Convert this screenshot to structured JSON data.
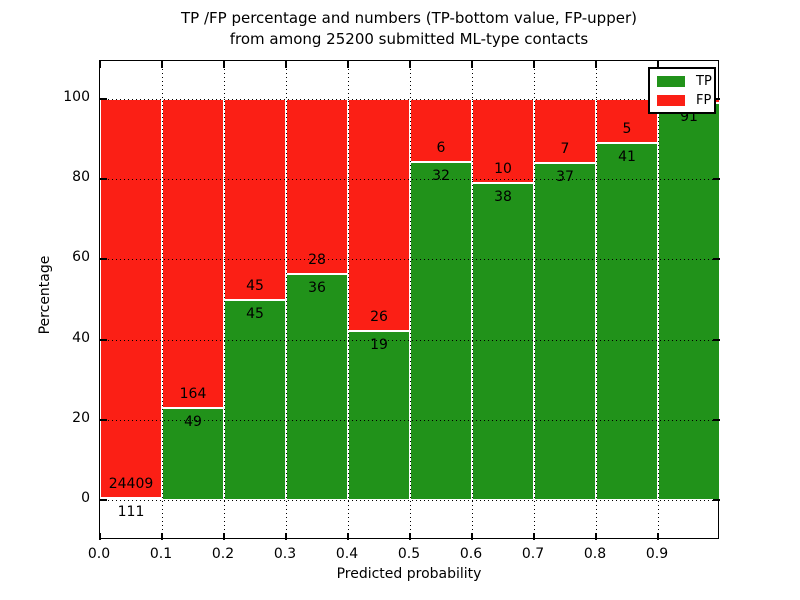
{
  "title": {
    "line1": "TP /FP percentage and numbers (TP-bottom value, FP-upper)",
    "line2": "from among 25200 submitted ML-type contacts"
  },
  "axes": {
    "ylabel": "Percentage",
    "xlabel": "Predicted probability",
    "ytick_labels": [
      "0",
      "20",
      "40",
      "60",
      "80",
      "100"
    ],
    "ytick_values": [
      0,
      20,
      40,
      60,
      80,
      100
    ],
    "xtick_labels": [
      "0.0",
      "0.1",
      "0.2",
      "0.3",
      "0.4",
      "0.5",
      "0.6",
      "0.7",
      "0.8",
      "0.9"
    ],
    "xtick_values": [
      0.0,
      0.1,
      0.2,
      0.3,
      0.4,
      0.5,
      0.6,
      0.7,
      0.8,
      0.9
    ]
  },
  "legend": {
    "items": [
      {
        "label": "TP",
        "color_key": "tp"
      },
      {
        "label": "FP",
        "color_key": "fp"
      }
    ]
  },
  "colors": {
    "tp": "#21921a",
    "fp": "#fb1f15"
  },
  "chart_data": {
    "type": "bar",
    "stacked": true,
    "normalized": "each bin scaled to 100%",
    "title": "TP /FP percentage and numbers (TP-bottom value, FP-upper) from among 25200 submitted ML-type contacts",
    "xlabel": "Predicted probability",
    "ylabel": "Percentage",
    "xlim": [
      0.0,
      1.0
    ],
    "ylim": [
      -10,
      110
    ],
    "grid": true,
    "legend_position": "upper right",
    "total_contacts": 25200,
    "bins": [
      "0.0-0.1",
      "0.1-0.2",
      "0.2-0.3",
      "0.3-0.4",
      "0.4-0.5",
      "0.5-0.6",
      "0.6-0.7",
      "0.7-0.8",
      "0.8-0.9",
      "0.9-1.0"
    ],
    "series": [
      {
        "name": "TP",
        "values": [
          111,
          49,
          45,
          36,
          19,
          32,
          38,
          37,
          41,
          91
        ]
      },
      {
        "name": "FP",
        "values": [
          24409,
          164,
          45,
          28,
          26,
          6,
          10,
          7,
          5,
          1
        ]
      }
    ],
    "tp_percent": [
      0.5,
      23.0,
      50.0,
      56.3,
      42.2,
      84.2,
      79.2,
      84.1,
      89.1,
      98.9
    ]
  }
}
